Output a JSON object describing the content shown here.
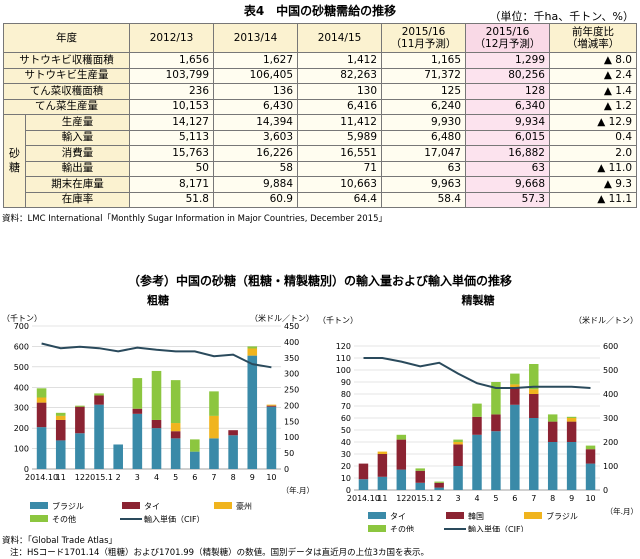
{
  "table": {
    "title": "表4　中国の砂糖需給の推移",
    "unit": "（単位：千ha、千トン、%）",
    "headers": [
      "年度",
      "2012/13",
      "2013/14",
      "2014/15",
      "2015/16\n（11月予測）",
      "2015/16\n（12月予測）",
      "前年度比\n（増減率）"
    ],
    "side_label": "砂糖",
    "rows": [
      {
        "label": "サトウキビ収穫面積",
        "values": [
          "1,656",
          "1,627",
          "1,412",
          "1,165",
          "1,299"
        ],
        "change": "▲ 8.0"
      },
      {
        "label": "サトウキビ生産量",
        "values": [
          "103,799",
          "106,405",
          "82,263",
          "71,372",
          "80,256"
        ],
        "change": "▲ 2.4"
      },
      {
        "label": "てん菜収穫面積",
        "values": [
          "236",
          "136",
          "130",
          "125",
          "128"
        ],
        "change": "▲ 1.4"
      },
      {
        "label": "てん菜生産量",
        "values": [
          "10,153",
          "6,430",
          "6,416",
          "6,240",
          "6,340"
        ],
        "change": "▲ 1.2"
      },
      {
        "label": "生産量",
        "values": [
          "14,127",
          "14,394",
          "11,412",
          "9,930",
          "9,934"
        ],
        "change": "▲ 12.9"
      },
      {
        "label": "輸入量",
        "values": [
          "5,113",
          "3,603",
          "5,989",
          "6,480",
          "6,015"
        ],
        "change": "0.4"
      },
      {
        "label": "消費量",
        "values": [
          "15,763",
          "16,226",
          "16,551",
          "17,047",
          "16,882"
        ],
        "change": "2.0"
      },
      {
        "label": "輸出量",
        "values": [
          "50",
          "58",
          "71",
          "63",
          "63"
        ],
        "change": "▲ 11.0"
      },
      {
        "label": "期末在庫量",
        "values": [
          "8,171",
          "9,884",
          "10,663",
          "9,963",
          "9,668"
        ],
        "change": "▲ 9.3"
      },
      {
        "label": "在庫率",
        "values": [
          "51.8",
          "60.9",
          "64.4",
          "58.4",
          "57.3"
        ],
        "change": "▲ 11.1"
      }
    ],
    "source": "資料：LMC International「Monthly Sugar Information in Major Countries, December 2015」"
  },
  "section_title": "（参考）中国の砂糖（粗糖・精製糖別）の輸入量および輸入単価の推移",
  "source2": "資料：「Global Trade Atlas」",
  "note2": "注：HSコード1701.14（粗糖）および1701.99（精製糖）の数値。国別データは直近月の上位3カ国を表示。",
  "chart_data": [
    {
      "type": "bar",
      "title": "粗糖",
      "left_unit": "（千トン）",
      "right_unit": "（米ドル／トン）",
      "x_unit": "（年.月）",
      "categories": [
        "2014.10",
        "11",
        "12",
        "2015.1",
        "2",
        "3",
        "4",
        "5",
        "6",
        "7",
        "8",
        "9",
        "10"
      ],
      "ylim": [
        0,
        700
      ],
      "yticks": [
        0,
        100,
        200,
        300,
        400,
        500,
        600,
        700
      ],
      "y2lim": [
        0,
        450
      ],
      "y2ticks": [
        0,
        50,
        100,
        150,
        200,
        250,
        300,
        350,
        400,
        450
      ],
      "series": [
        {
          "name": "ブラジル",
          "color": "#3a8aa8",
          "values": [
            205,
            140,
            175,
            315,
            120,
            270,
            200,
            150,
            85,
            150,
            165,
            555,
            305
          ]
        },
        {
          "name": "タイ",
          "color": "#8b2332",
          "values": [
            120,
            100,
            130,
            45,
            0,
            25,
            40,
            35,
            0,
            0,
            25,
            0,
            5
          ]
        },
        {
          "name": "豪州",
          "color": "#f0b41e",
          "values": [
            25,
            20,
            0,
            0,
            0,
            0,
            0,
            40,
            0,
            110,
            0,
            35,
            5
          ]
        },
        {
          "name": "その他",
          "color": "#8cc63f",
          "values": [
            45,
            15,
            5,
            10,
            0,
            150,
            240,
            210,
            60,
            120,
            0,
            10,
            0
          ]
        }
      ],
      "line": {
        "name": "輸入単価（CIF）",
        "color": "#2a4a5c",
        "values": [
          395,
          380,
          385,
          380,
          370,
          382,
          375,
          370,
          370,
          355,
          360,
          330,
          320
        ]
      }
    },
    {
      "type": "bar",
      "title": "精製糖",
      "left_unit": "（千トン）",
      "right_unit": "（米ドル／トン）",
      "x_unit": "（年.月）",
      "categories": [
        "2014.10",
        "11",
        "12",
        "2015.1",
        "2",
        "3",
        "4",
        "5",
        "6",
        "7",
        "8",
        "9",
        "10"
      ],
      "ylim": [
        0,
        120
      ],
      "yticks": [
        0,
        10,
        20,
        30,
        40,
        50,
        60,
        70,
        80,
        90,
        100,
        110,
        120
      ],
      "y2lim": [
        0,
        600
      ],
      "y2ticks": [
        0,
        100,
        200,
        300,
        400,
        500,
        600
      ],
      "series": [
        {
          "name": "タイ",
          "color": "#3a8aa8",
          "values": [
            9,
            11,
            17,
            6,
            2,
            20,
            46,
            49,
            71,
            60,
            40,
            40,
            22
          ]
        },
        {
          "name": "韓国",
          "color": "#8b2332",
          "values": [
            13,
            19,
            25,
            10,
            4,
            18,
            15,
            14,
            14,
            20,
            17,
            17,
            12
          ]
        },
        {
          "name": "ブラジル",
          "color": "#f0b41e",
          "values": [
            0,
            2,
            0,
            0,
            0,
            2,
            0,
            0,
            3,
            4,
            0,
            3,
            0
          ]
        },
        {
          "name": "その他",
          "color": "#8cc63f",
          "values": [
            0,
            0,
            4,
            2,
            1,
            2,
            11,
            27,
            9,
            21,
            6,
            1,
            3
          ]
        }
      ],
      "line": {
        "name": "輸入単価（CIF）",
        "color": "#2a4a5c",
        "values": [
          550,
          550,
          535,
          515,
          530,
          485,
          445,
          425,
          425,
          430,
          430,
          430,
          425
        ]
      }
    }
  ]
}
